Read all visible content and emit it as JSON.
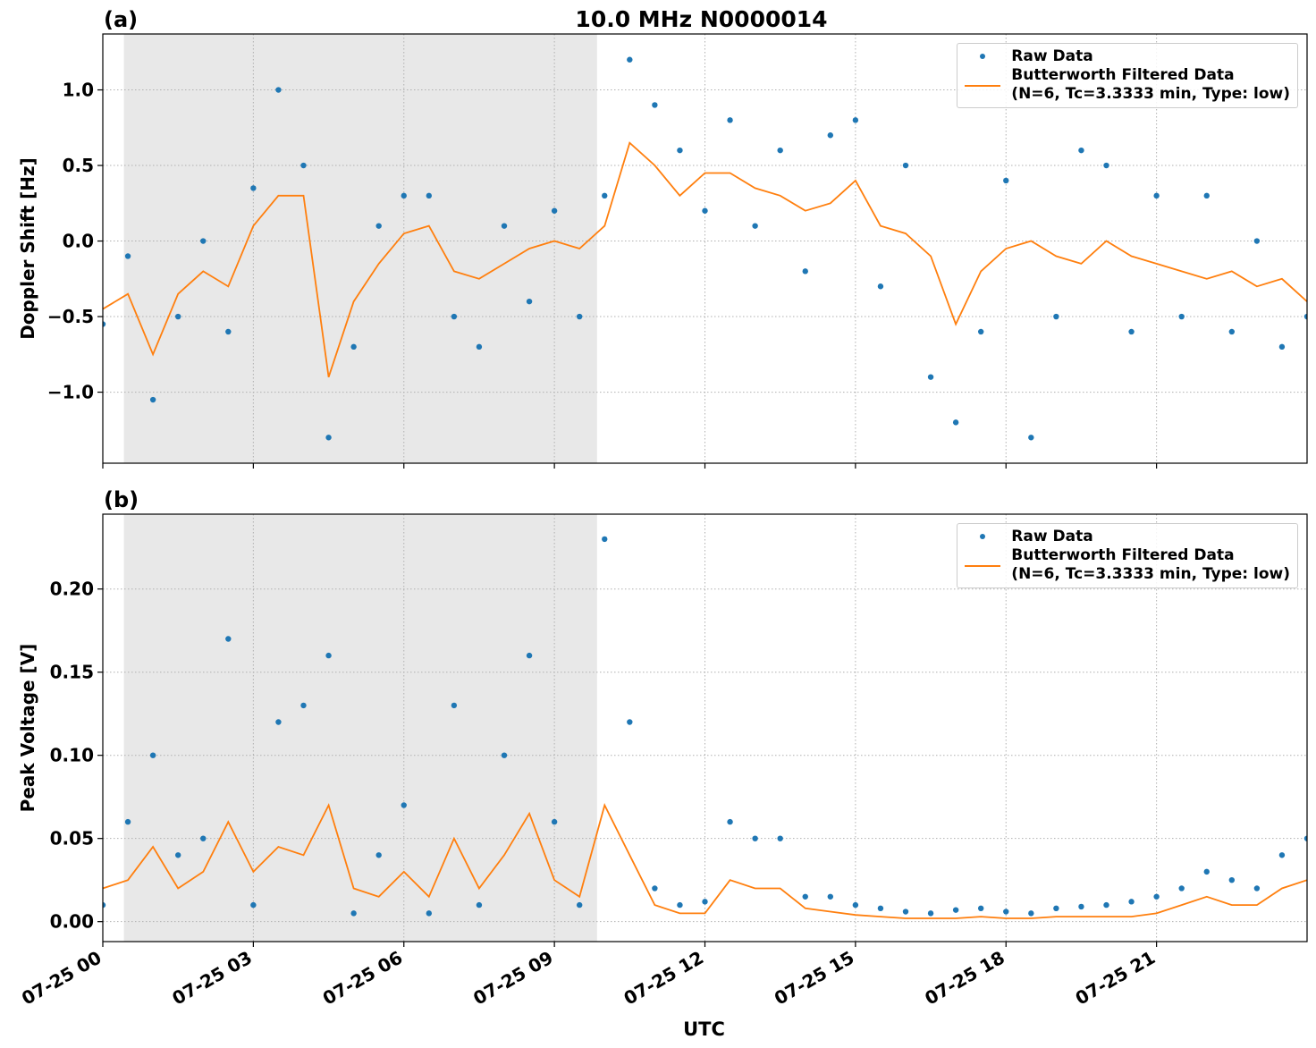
{
  "chart_data": [
    {
      "type": "scatter-line",
      "title": "10.0 MHz N0000014",
      "panel_label": "(a)",
      "y_label": "Doppler Shift [Hz]",
      "x": [
        0,
        0.5,
        1,
        1.5,
        2,
        2.5,
        3,
        3.5,
        4,
        4.5,
        5,
        5.5,
        6,
        6.5,
        7,
        7.5,
        8,
        8.5,
        9,
        9.5,
        10,
        10.5,
        11,
        11.5,
        12,
        12.5,
        13,
        13.5,
        14,
        14.5,
        15,
        15.5,
        16,
        16.5,
        17,
        17.5,
        18,
        18.5,
        19,
        19.5,
        20,
        20.5,
        21,
        21.5,
        22,
        22.5,
        23,
        23.5,
        24
      ],
      "series": [
        {
          "name": "Raw Data",
          "color": "#1f77b4",
          "style": "dots",
          "values": [
            -0.55,
            -0.1,
            -1.05,
            -0.5,
            0.0,
            -0.6,
            0.35,
            1.0,
            0.5,
            -1.3,
            -0.7,
            0.1,
            0.3,
            0.3,
            -0.5,
            -0.7,
            0.1,
            -0.4,
            0.2,
            -0.5,
            0.3,
            1.2,
            0.9,
            0.6,
            0.2,
            0.8,
            0.1,
            0.6,
            -0.2,
            0.7,
            0.8,
            -0.3,
            0.5,
            -0.9,
            -1.2,
            -0.6,
            0.4,
            -1.3,
            -0.5,
            0.6,
            0.5,
            -0.6,
            0.3,
            -0.5,
            0.3,
            -0.6,
            0.0,
            -0.7,
            -0.5
          ]
        },
        {
          "name": "Butterworth Filtered Data\n(N=6, Tc=3.3333 min, Type: low)",
          "color": "#ff7f0e",
          "style": "line",
          "values": [
            -0.45,
            -0.35,
            -0.75,
            -0.35,
            -0.2,
            -0.3,
            0.1,
            0.3,
            0.3,
            -0.9,
            -0.4,
            -0.15,
            0.05,
            0.1,
            -0.2,
            -0.25,
            -0.15,
            -0.05,
            0.0,
            -0.05,
            0.1,
            0.65,
            0.5,
            0.3,
            0.45,
            0.45,
            0.35,
            0.3,
            0.2,
            0.25,
            0.4,
            0.1,
            0.05,
            -0.1,
            -0.55,
            -0.2,
            -0.05,
            0.0,
            -0.1,
            -0.15,
            0.0,
            -0.1,
            -0.15,
            -0.2,
            -0.25,
            -0.2,
            -0.3,
            -0.25,
            -0.4
          ]
        }
      ],
      "xlim": [
        0,
        24
      ],
      "xticks": [
        0,
        3,
        6,
        9,
        12,
        15,
        18,
        21
      ],
      "ylim": [
        -1.47,
        1.37
      ],
      "yticks": [
        {
          "value": -1,
          "label": "−1.0"
        },
        {
          "value": -0.5,
          "label": "−0.5"
        },
        {
          "value": 0,
          "label": "0.0"
        },
        {
          "value": 0.5,
          "label": "0.5"
        },
        {
          "value": 1,
          "label": "1.0"
        }
      ],
      "shaded_span": [
        0.42,
        9.85
      ],
      "grid": true,
      "legend": "upper-right"
    },
    {
      "type": "scatter-line",
      "panel_label": "(b)",
      "y_label": "Peak Voltage [V]",
      "x_label": "UTC",
      "x": [
        0,
        0.5,
        1,
        1.5,
        2,
        2.5,
        3,
        3.5,
        4,
        4.5,
        5,
        5.5,
        6,
        6.5,
        7,
        7.5,
        8,
        8.5,
        9,
        9.5,
        10,
        10.5,
        11,
        11.5,
        12,
        12.5,
        13,
        13.5,
        14,
        14.5,
        15,
        15.5,
        16,
        16.5,
        17,
        17.5,
        18,
        18.5,
        19,
        19.5,
        20,
        20.5,
        21,
        21.5,
        22,
        22.5,
        23,
        23.5,
        24
      ],
      "series": [
        {
          "name": "Raw Data",
          "color": "#1f77b4",
          "style": "dots",
          "values": [
            0.01,
            0.06,
            0.1,
            0.04,
            0.05,
            0.17,
            0.01,
            0.12,
            0.13,
            0.16,
            0.005,
            0.04,
            0.07,
            0.005,
            0.13,
            0.01,
            0.1,
            0.16,
            0.06,
            0.01,
            0.23,
            0.12,
            0.02,
            0.01,
            0.012,
            0.06,
            0.05,
            0.05,
            0.015,
            0.015,
            0.01,
            0.008,
            0.006,
            0.005,
            0.007,
            0.008,
            0.006,
            0.005,
            0.008,
            0.009,
            0.01,
            0.012,
            0.015,
            0.02,
            0.03,
            0.025,
            0.02,
            0.04,
            0.05
          ]
        },
        {
          "name": "Butterworth Filtered Data\n(N=6, Tc=3.3333 min, Type: low)",
          "color": "#ff7f0e",
          "style": "line",
          "values": [
            0.02,
            0.025,
            0.045,
            0.02,
            0.03,
            0.06,
            0.03,
            0.045,
            0.04,
            0.07,
            0.02,
            0.015,
            0.03,
            0.015,
            0.05,
            0.02,
            0.04,
            0.065,
            0.025,
            0.015,
            0.07,
            0.04,
            0.01,
            0.005,
            0.005,
            0.025,
            0.02,
            0.02,
            0.008,
            0.006,
            0.004,
            0.003,
            0.002,
            0.002,
            0.002,
            0.003,
            0.002,
            0.002,
            0.003,
            0.003,
            0.003,
            0.003,
            0.005,
            0.01,
            0.015,
            0.01,
            0.01,
            0.02,
            0.025
          ]
        }
      ],
      "xlim": [
        0,
        24
      ],
      "xticks": [
        {
          "value": 0,
          "label": "07-25 00"
        },
        {
          "value": 3,
          "label": "07-25 03"
        },
        {
          "value": 6,
          "label": "07-25 06"
        },
        {
          "value": 9,
          "label": "07-25 09"
        },
        {
          "value": 12,
          "label": "07-25 12"
        },
        {
          "value": 15,
          "label": "07-25 15"
        },
        {
          "value": 18,
          "label": "07-25 18"
        },
        {
          "value": 21,
          "label": "07-25 21"
        }
      ],
      "ylim": [
        -0.012,
        0.245
      ],
      "yticks": [
        {
          "value": 0,
          "label": "0.00"
        },
        {
          "value": 0.05,
          "label": "0.05"
        },
        {
          "value": 0.1,
          "label": "0.10"
        },
        {
          "value": 0.15,
          "label": "0.15"
        },
        {
          "value": 0.2,
          "label": "0.20"
        }
      ],
      "shaded_span": [
        0.42,
        9.85
      ],
      "grid": true,
      "legend": "upper-right"
    }
  ]
}
